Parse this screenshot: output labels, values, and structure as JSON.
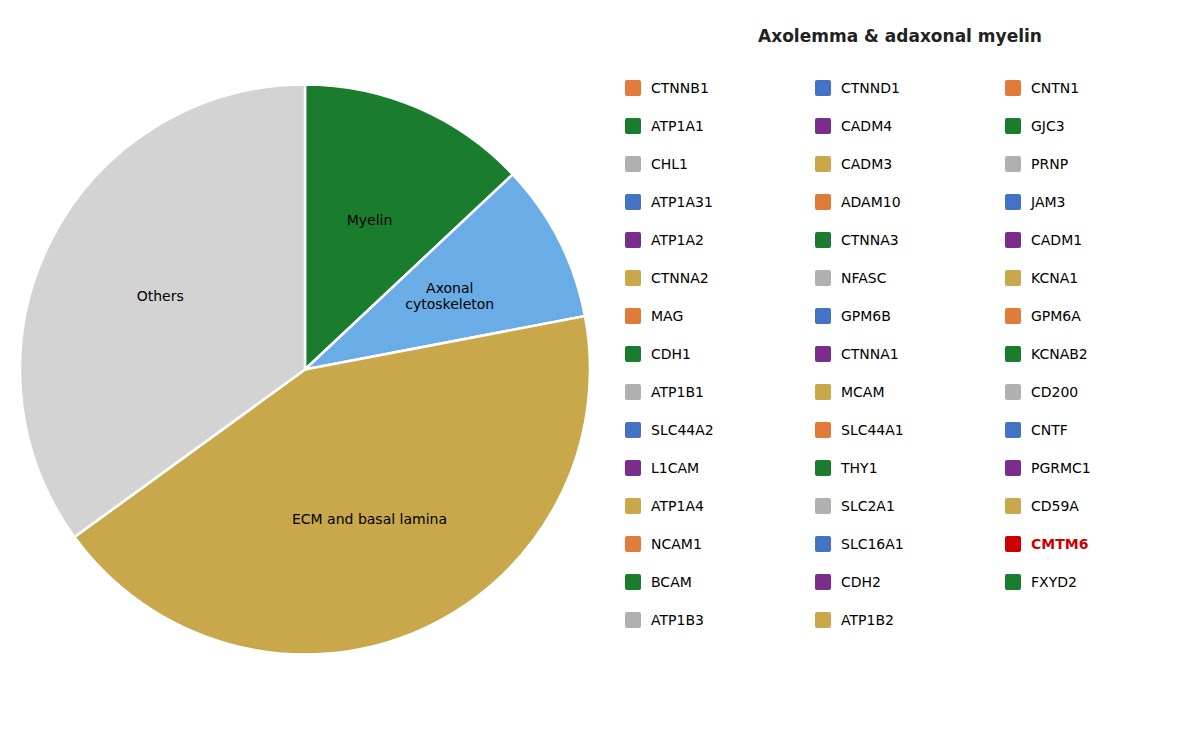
{
  "chart_data": {
    "type": "pie",
    "categories": [
      "Myelin",
      "Axonal\ncytoskeleton",
      "ECM and basal lamina",
      "Others"
    ],
    "values": [
      13,
      9,
      43,
      35
    ],
    "colors": [
      "#1a7d2e",
      "#6aace6",
      "#c8a84b",
      "#d3d3d3"
    ],
    "annotations": {
      "title": "Axolemma & adaxonal myelin",
      "items": [
        {
          "text": "CTNNB1",
          "color": "#e07b39"
        },
        {
          "text": "CTNND1",
          "color": "#4472c4"
        },
        {
          "text": "CNTN1",
          "color": "#e07b39"
        },
        {
          "text": "ATP1A1",
          "color": "#1a7d2e"
        },
        {
          "text": "CADM4",
          "color": "#7b2d8b"
        },
        {
          "text": "GJC3",
          "color": "#1a7d2e"
        },
        {
          "text": "CHL1",
          "color": "#b0b0b0"
        },
        {
          "text": "CADM3",
          "color": "#c8a84b"
        },
        {
          "text": "PRNP",
          "color": "#b0b0b0"
        },
        {
          "text": "ATP1A31",
          "color": "#4472c4"
        },
        {
          "text": "ADAM10",
          "color": "#e07b39"
        },
        {
          "text": "JAM3",
          "color": "#4472c4"
        },
        {
          "text": "ATP1A2",
          "color": "#7b2d8b"
        },
        {
          "text": "CTNNA3",
          "color": "#1a7d2e"
        },
        {
          "text": "CADM1",
          "color": "#7b2d8b"
        },
        {
          "text": "CTNNA2",
          "color": "#c8a84b"
        },
        {
          "text": "NFASC",
          "color": "#b0b0b0"
        },
        {
          "text": "KCNA1",
          "color": "#c8a84b"
        },
        {
          "text": "MAG",
          "color": "#e07b39"
        },
        {
          "text": "GPM6B",
          "color": "#4472c4"
        },
        {
          "text": "GPM6A",
          "color": "#e07b39"
        },
        {
          "text": "CDH1",
          "color": "#1a7d2e"
        },
        {
          "text": "CTNNA1",
          "color": "#7b2d8b"
        },
        {
          "text": "KCNAB2",
          "color": "#1a7d2e"
        },
        {
          "text": "ATP1B1",
          "color": "#b0b0b0"
        },
        {
          "text": "MCAM",
          "color": "#c8a84b"
        },
        {
          "text": "CD200",
          "color": "#b0b0b0"
        },
        {
          "text": "SLC44A2",
          "color": "#4472c4"
        },
        {
          "text": "SLC44A1",
          "color": "#e07b39"
        },
        {
          "text": "CNTF",
          "color": "#4472c4"
        },
        {
          "text": "L1CAM",
          "color": "#7b2d8b"
        },
        {
          "text": "THY1",
          "color": "#1a7d2e"
        },
        {
          "text": "PGRMC1",
          "color": "#7b2d8b"
        },
        {
          "text": "ATP1A4",
          "color": "#c8a84b"
        },
        {
          "text": "SLC2A1",
          "color": "#b0b0b0"
        },
        {
          "text": "CD59A",
          "color": "#c8a84b"
        },
        {
          "text": "NCAM1",
          "color": "#e07b39"
        },
        {
          "text": "SLC16A1",
          "color": "#4472c4"
        },
        {
          "text": "CMTM6",
          "color": "#cc0000",
          "highlight": true
        },
        {
          "text": "BCAM",
          "color": "#1a7d2e"
        },
        {
          "text": "CDH2",
          "color": "#7b2d8b"
        },
        {
          "text": "FXYD2",
          "color": "#1a7d2e"
        },
        {
          "text": "ATP1B3",
          "color": "#b0b0b0"
        },
        {
          "text": "ATP1B2",
          "color": "#c8a84b"
        }
      ]
    }
  }
}
